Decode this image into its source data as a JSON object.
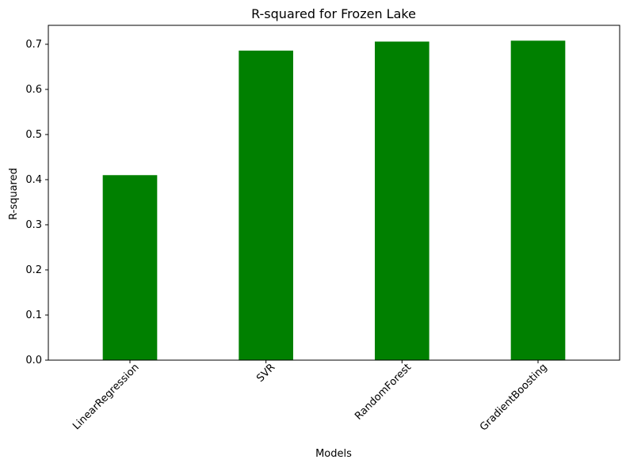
{
  "chart_data": {
    "type": "bar",
    "title": "R-squared for Frozen Lake",
    "xlabel": "Models",
    "ylabel": "R-squared",
    "categories": [
      "LinearRegression",
      "SVR",
      "RandomForest",
      "GradientBoosting"
    ],
    "values": [
      0.41,
      0.686,
      0.706,
      0.708
    ],
    "ylim": [
      0,
      0.742
    ],
    "yticks": [
      "0.0",
      "0.1",
      "0.2",
      "0.3",
      "0.4",
      "0.5",
      "0.6",
      "0.7"
    ],
    "grid": false,
    "bar_color": "#008000",
    "x_tick_rotation": "45"
  }
}
